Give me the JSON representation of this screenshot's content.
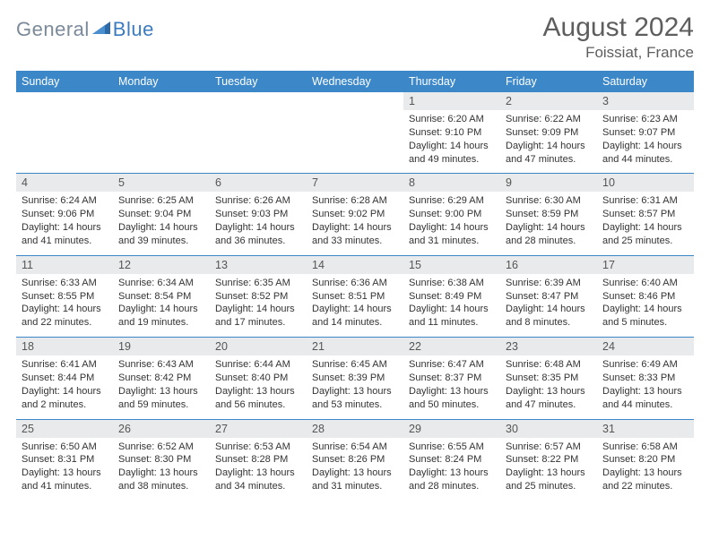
{
  "brand": {
    "part1": "General",
    "part2": "Blue"
  },
  "title": "August 2024",
  "location": "Foissiat, France",
  "colors": {
    "header_bg": "#3b87c8",
    "header_text": "#ffffff",
    "daynum_bg": "#e9eaeb",
    "border": "#3b87c8",
    "title_color": "#5e5e5e"
  },
  "dow": [
    "Sunday",
    "Monday",
    "Tuesday",
    "Wednesday",
    "Thursday",
    "Friday",
    "Saturday"
  ],
  "weeks": [
    {
      "nums": [
        "",
        "",
        "",
        "",
        "1",
        "2",
        "3"
      ],
      "cells": [
        null,
        null,
        null,
        null,
        {
          "sr": "6:20 AM",
          "ss": "9:10 PM",
          "dl": "14 hours and 49 minutes."
        },
        {
          "sr": "6:22 AM",
          "ss": "9:09 PM",
          "dl": "14 hours and 47 minutes."
        },
        {
          "sr": "6:23 AM",
          "ss": "9:07 PM",
          "dl": "14 hours and 44 minutes."
        }
      ]
    },
    {
      "nums": [
        "4",
        "5",
        "6",
        "7",
        "8",
        "9",
        "10"
      ],
      "cells": [
        {
          "sr": "6:24 AM",
          "ss": "9:06 PM",
          "dl": "14 hours and 41 minutes."
        },
        {
          "sr": "6:25 AM",
          "ss": "9:04 PM",
          "dl": "14 hours and 39 minutes."
        },
        {
          "sr": "6:26 AM",
          "ss": "9:03 PM",
          "dl": "14 hours and 36 minutes."
        },
        {
          "sr": "6:28 AM",
          "ss": "9:02 PM",
          "dl": "14 hours and 33 minutes."
        },
        {
          "sr": "6:29 AM",
          "ss": "9:00 PM",
          "dl": "14 hours and 31 minutes."
        },
        {
          "sr": "6:30 AM",
          "ss": "8:59 PM",
          "dl": "14 hours and 28 minutes."
        },
        {
          "sr": "6:31 AM",
          "ss": "8:57 PM",
          "dl": "14 hours and 25 minutes."
        }
      ]
    },
    {
      "nums": [
        "11",
        "12",
        "13",
        "14",
        "15",
        "16",
        "17"
      ],
      "cells": [
        {
          "sr": "6:33 AM",
          "ss": "8:55 PM",
          "dl": "14 hours and 22 minutes."
        },
        {
          "sr": "6:34 AM",
          "ss": "8:54 PM",
          "dl": "14 hours and 19 minutes."
        },
        {
          "sr": "6:35 AM",
          "ss": "8:52 PM",
          "dl": "14 hours and 17 minutes."
        },
        {
          "sr": "6:36 AM",
          "ss": "8:51 PM",
          "dl": "14 hours and 14 minutes."
        },
        {
          "sr": "6:38 AM",
          "ss": "8:49 PM",
          "dl": "14 hours and 11 minutes."
        },
        {
          "sr": "6:39 AM",
          "ss": "8:47 PM",
          "dl": "14 hours and 8 minutes."
        },
        {
          "sr": "6:40 AM",
          "ss": "8:46 PM",
          "dl": "14 hours and 5 minutes."
        }
      ]
    },
    {
      "nums": [
        "18",
        "19",
        "20",
        "21",
        "22",
        "23",
        "24"
      ],
      "cells": [
        {
          "sr": "6:41 AM",
          "ss": "8:44 PM",
          "dl": "14 hours and 2 minutes."
        },
        {
          "sr": "6:43 AM",
          "ss": "8:42 PM",
          "dl": "13 hours and 59 minutes."
        },
        {
          "sr": "6:44 AM",
          "ss": "8:40 PM",
          "dl": "13 hours and 56 minutes."
        },
        {
          "sr": "6:45 AM",
          "ss": "8:39 PM",
          "dl": "13 hours and 53 minutes."
        },
        {
          "sr": "6:47 AM",
          "ss": "8:37 PM",
          "dl": "13 hours and 50 minutes."
        },
        {
          "sr": "6:48 AM",
          "ss": "8:35 PM",
          "dl": "13 hours and 47 minutes."
        },
        {
          "sr": "6:49 AM",
          "ss": "8:33 PM",
          "dl": "13 hours and 44 minutes."
        }
      ]
    },
    {
      "nums": [
        "25",
        "26",
        "27",
        "28",
        "29",
        "30",
        "31"
      ],
      "cells": [
        {
          "sr": "6:50 AM",
          "ss": "8:31 PM",
          "dl": "13 hours and 41 minutes."
        },
        {
          "sr": "6:52 AM",
          "ss": "8:30 PM",
          "dl": "13 hours and 38 minutes."
        },
        {
          "sr": "6:53 AM",
          "ss": "8:28 PM",
          "dl": "13 hours and 34 minutes."
        },
        {
          "sr": "6:54 AM",
          "ss": "8:26 PM",
          "dl": "13 hours and 31 minutes."
        },
        {
          "sr": "6:55 AM",
          "ss": "8:24 PM",
          "dl": "13 hours and 28 minutes."
        },
        {
          "sr": "6:57 AM",
          "ss": "8:22 PM",
          "dl": "13 hours and 25 minutes."
        },
        {
          "sr": "6:58 AM",
          "ss": "8:20 PM",
          "dl": "13 hours and 22 minutes."
        }
      ]
    }
  ],
  "labels": {
    "sunrise": "Sunrise: ",
    "sunset": "Sunset: ",
    "daylight": "Daylight: "
  }
}
